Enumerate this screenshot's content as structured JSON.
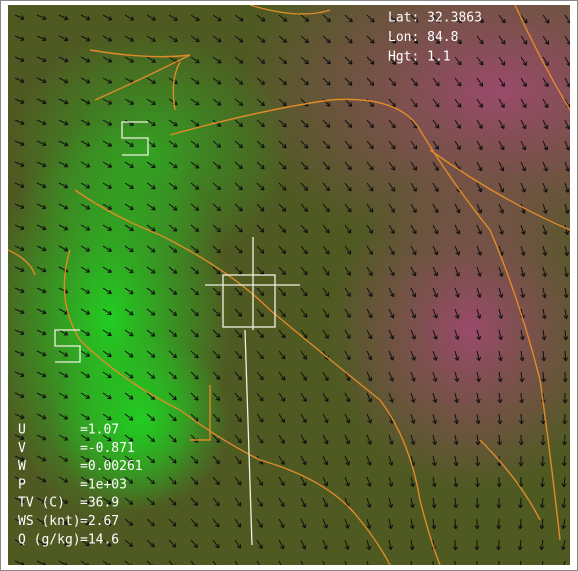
{
  "probe": [
    "Lat: 32.3863",
    "Lon: 84.8",
    "Hgt: 1.1"
  ],
  "readout": [
    {
      "label": "U",
      "value": "=1.07"
    },
    {
      "label": "V",
      "value": "=-0.871"
    },
    {
      "label": "W",
      "value": "=0.00261"
    },
    {
      "label": "P",
      "value": "=1e+03"
    },
    {
      "label": "TV (C)",
      "value": "=36.9"
    },
    {
      "label": "WS (knt)",
      "value": "=2.67"
    },
    {
      "label": "Q (g/kg)",
      "value": "=14.6"
    }
  ]
}
